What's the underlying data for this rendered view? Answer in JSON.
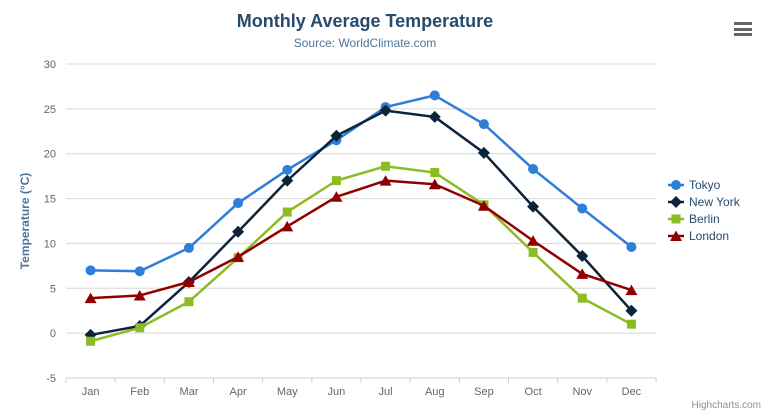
{
  "header": {
    "title": "Monthly Average Temperature",
    "subtitle": "Source: WorldClimate.com"
  },
  "credit": "Highcharts.com",
  "chart_data": {
    "type": "line",
    "title": "Monthly Average Temperature",
    "subtitle": "Source: WorldClimate.com",
    "xlabel": "",
    "ylabel": "Temperature (°C)",
    "categories": [
      "Jan",
      "Feb",
      "Mar",
      "Apr",
      "May",
      "Jun",
      "Jul",
      "Aug",
      "Sep",
      "Oct",
      "Nov",
      "Dec"
    ],
    "series": [
      {
        "name": "Tokyo",
        "color": "#2f7ed8",
        "marker": "circle",
        "values": [
          7.0,
          6.9,
          9.5,
          14.5,
          18.2,
          21.5,
          25.2,
          26.5,
          23.3,
          18.3,
          13.9,
          9.6
        ]
      },
      {
        "name": "New York",
        "color": "#0d233a",
        "marker": "diamond",
        "values": [
          -0.2,
          0.8,
          5.7,
          11.3,
          17.0,
          22.0,
          24.8,
          24.1,
          20.1,
          14.1,
          8.6,
          2.5
        ]
      },
      {
        "name": "Berlin",
        "color": "#8bbc21",
        "marker": "square",
        "values": [
          -0.9,
          0.6,
          3.5,
          8.4,
          13.5,
          17.0,
          18.6,
          17.9,
          14.3,
          9.0,
          3.9,
          1.0
        ]
      },
      {
        "name": "London",
        "color": "#910000",
        "marker": "triangle",
        "values": [
          3.9,
          4.2,
          5.7,
          8.5,
          11.9,
          15.2,
          17.0,
          16.6,
          14.2,
          10.3,
          6.6,
          4.8
        ]
      }
    ],
    "ylim": [
      -5,
      30
    ],
    "ytick_step": 5,
    "ytick_labels": [
      "-5",
      "0",
      "5",
      "10",
      "15",
      "20",
      "25",
      "30"
    ],
    "grid": true,
    "legend_position": "right"
  },
  "styles": {
    "title_color": "#274b6d",
    "subtitle_color": "#4d759e",
    "axis_title_color": "#4d759e",
    "tick_label_color": "#666666",
    "grid_color": "#d8d8d8",
    "axis_line_color": "#c0d0e0",
    "legend_text_color": "#274b6d",
    "credit_color": "#909090",
    "hamburger_color": "#666666"
  }
}
